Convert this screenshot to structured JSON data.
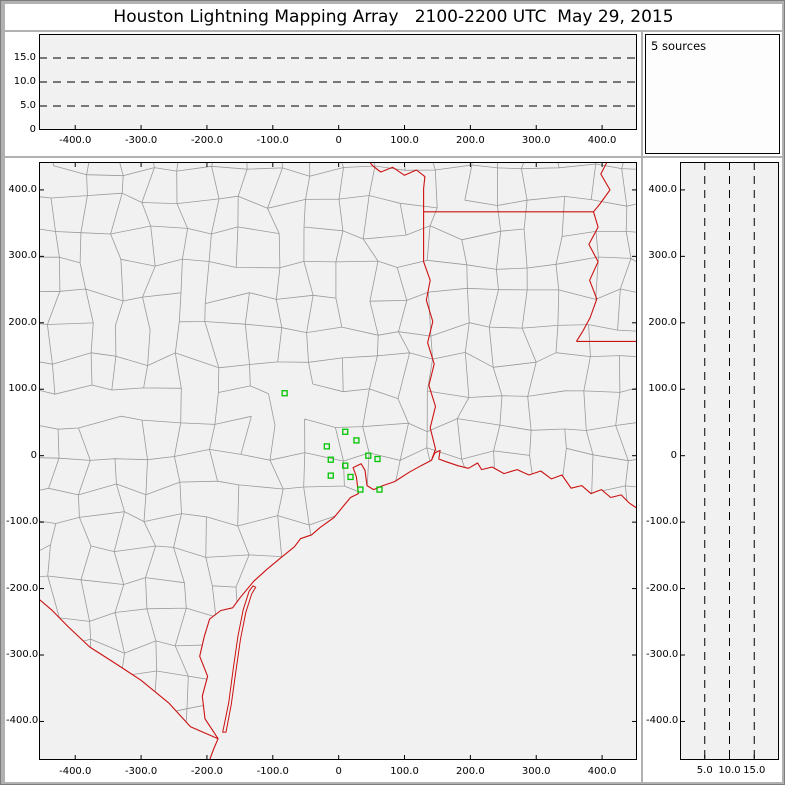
{
  "window": {
    "title": "Houston Lightning Mapping Array   2100-2200 UTC  May 29, 2015"
  },
  "stats_panel": {
    "label": "5 sources"
  },
  "colors": {
    "frame": "#b1b1b1",
    "cell_bg": "#ffffff",
    "plot_bg": "#f1f1f1",
    "county_line": "#9a9a9a",
    "state_line": "#cc1111",
    "station": "#00c400",
    "dash_line": "#000000"
  },
  "chart_data": [
    {
      "id": "alt_ew",
      "name": "altitude-vs-east-west",
      "type": "scatter",
      "xlim": [
        -455,
        453
      ],
      "ylim": [
        0,
        20
      ],
      "x_tick_values": [
        -400,
        -300,
        -200,
        -100,
        0,
        100,
        200,
        300,
        400
      ],
      "x_tick_labels": [
        "-400.0",
        "-300.0",
        "-200.0",
        "-100.0",
        "0",
        "100.0",
        "200.0",
        "300.0",
        "400.0"
      ],
      "y_tick_values": [
        15,
        10,
        5,
        0
      ],
      "y_tick_labels": [
        "15.0",
        "10.0",
        "5.0",
        "0"
      ],
      "gridlines_y": [
        5,
        10,
        15
      ],
      "grid_style": "dashed",
      "points": []
    },
    {
      "id": "map",
      "name": "plan-view-map",
      "type": "scatter",
      "xlim": [
        -455,
        453
      ],
      "ylim": [
        -458,
        442
      ],
      "x_tick_values": [
        -400,
        -300,
        -200,
        -100,
        0,
        100,
        200,
        300,
        400
      ],
      "x_tick_labels": [
        "-400.0",
        "-300.0",
        "-200.0",
        "-100.0",
        "0",
        "100.0",
        "200.0",
        "300.0",
        "400.0"
      ],
      "y_tick_values": [
        400,
        300,
        200,
        100,
        0,
        -100,
        -200,
        -300,
        -400
      ],
      "y_tick_labels": [
        "400.0",
        "300.0",
        "200.0",
        "100.0",
        "0",
        "-100.0",
        "-200.0",
        "-300.0",
        "-400.0"
      ],
      "stations_km": [
        [
          -82,
          94
        ],
        [
          10,
          36
        ],
        [
          -18,
          14
        ],
        [
          27,
          23
        ],
        [
          -12,
          -6
        ],
        [
          10,
          -15
        ],
        [
          45,
          0
        ],
        [
          59,
          -5
        ],
        [
          -12,
          -30
        ],
        [
          18,
          -32
        ],
        [
          33,
          -51
        ],
        [
          62,
          -51
        ]
      ]
    },
    {
      "id": "alt_ns",
      "name": "north-south-vs-altitude",
      "type": "scatter",
      "xlim": [
        0,
        20
      ],
      "ylim": [
        -458,
        442
      ],
      "x_tick_values": [
        5,
        10,
        15
      ],
      "x_tick_labels": [
        "5.0",
        "10.0",
        "15.0"
      ],
      "y_tick_values": [
        400,
        300,
        200,
        100,
        0,
        -100,
        -200,
        -300,
        -400
      ],
      "y_tick_labels": [
        "400.0",
        "300.0",
        "200.0",
        "100.0",
        "0",
        "-100.0",
        "-200.0",
        "-300.0",
        "-400.0"
      ],
      "gridlines_x": [
        5,
        10,
        15
      ],
      "grid_style": "dashed",
      "points": []
    }
  ]
}
